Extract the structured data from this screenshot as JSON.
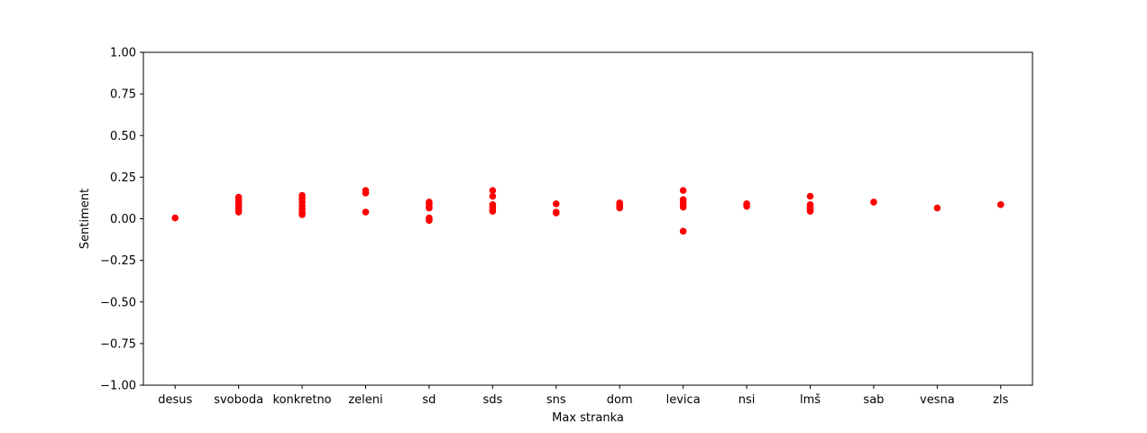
{
  "chart_data": {
    "type": "scatter",
    "title": "",
    "xlabel": "Max stranka",
    "ylabel": "Sentiment",
    "ylim": [
      -1.0,
      1.0
    ],
    "yticks": [
      "1.00",
      "0.75",
      "0.50",
      "0.25",
      "0.00",
      "−0.25",
      "−0.50",
      "−0.75",
      "−1.00"
    ],
    "ytick_values": [
      1.0,
      0.75,
      0.5,
      0.25,
      0.0,
      -0.25,
      -0.5,
      -0.75,
      -1.0
    ],
    "grid": false,
    "legend": "none",
    "marker_color": "#ff0000",
    "categories": [
      "desus",
      "svoboda",
      "konkretno",
      "zeleni",
      "sd",
      "sds",
      "sns",
      "dom",
      "levica",
      "nsi",
      "lmš",
      "sab",
      "vesna",
      "zls"
    ],
    "series": [
      {
        "points": [
          {
            "x": "desus",
            "y": 0.005
          },
          {
            "x": "svoboda",
            "y": 0.13
          },
          {
            "x": "svoboda",
            "y": 0.115
          },
          {
            "x": "svoboda",
            "y": 0.1
          },
          {
            "x": "svoboda",
            "y": 0.085
          },
          {
            "x": "svoboda",
            "y": 0.07
          },
          {
            "x": "svoboda",
            "y": 0.055
          },
          {
            "x": "svoboda",
            "y": 0.04
          },
          {
            "x": "konkretno",
            "y": 0.14
          },
          {
            "x": "konkretno",
            "y": 0.12
          },
          {
            "x": "konkretno",
            "y": 0.1
          },
          {
            "x": "konkretno",
            "y": 0.08
          },
          {
            "x": "konkretno",
            "y": 0.06
          },
          {
            "x": "konkretno",
            "y": 0.04
          },
          {
            "x": "konkretno",
            "y": 0.025
          },
          {
            "x": "zeleni",
            "y": 0.17
          },
          {
            "x": "zeleni",
            "y": 0.155
          },
          {
            "x": "zeleni",
            "y": 0.04
          },
          {
            "x": "sd",
            "y": 0.1
          },
          {
            "x": "sd",
            "y": 0.09
          },
          {
            "x": "sd",
            "y": 0.075
          },
          {
            "x": "sd",
            "y": 0.065
          },
          {
            "x": "sd",
            "y": 0.005
          },
          {
            "x": "sd",
            "y": -0.01
          },
          {
            "x": "sds",
            "y": 0.17
          },
          {
            "x": "sds",
            "y": 0.135
          },
          {
            "x": "sds",
            "y": 0.085
          },
          {
            "x": "sds",
            "y": 0.07
          },
          {
            "x": "sds",
            "y": 0.055
          },
          {
            "x": "sds",
            "y": 0.045
          },
          {
            "x": "sns",
            "y": 0.09
          },
          {
            "x": "sns",
            "y": 0.04
          },
          {
            "x": "sns",
            "y": 0.035
          },
          {
            "x": "dom",
            "y": 0.095
          },
          {
            "x": "dom",
            "y": 0.085
          },
          {
            "x": "dom",
            "y": 0.075
          },
          {
            "x": "dom",
            "y": 0.065
          },
          {
            "x": "levica",
            "y": 0.17
          },
          {
            "x": "levica",
            "y": 0.115
          },
          {
            "x": "levica",
            "y": 0.1
          },
          {
            "x": "levica",
            "y": 0.085
          },
          {
            "x": "levica",
            "y": 0.07
          },
          {
            "x": "levica",
            "y": -0.075
          },
          {
            "x": "nsi",
            "y": 0.09
          },
          {
            "x": "nsi",
            "y": 0.075
          },
          {
            "x": "lmš",
            "y": 0.135
          },
          {
            "x": "lmš",
            "y": 0.085
          },
          {
            "x": "lmš",
            "y": 0.07
          },
          {
            "x": "lmš",
            "y": 0.055
          },
          {
            "x": "lmš",
            "y": 0.045
          },
          {
            "x": "sab",
            "y": 0.1
          },
          {
            "x": "vesna",
            "y": 0.065
          },
          {
            "x": "zls",
            "y": 0.085
          }
        ]
      }
    ]
  }
}
